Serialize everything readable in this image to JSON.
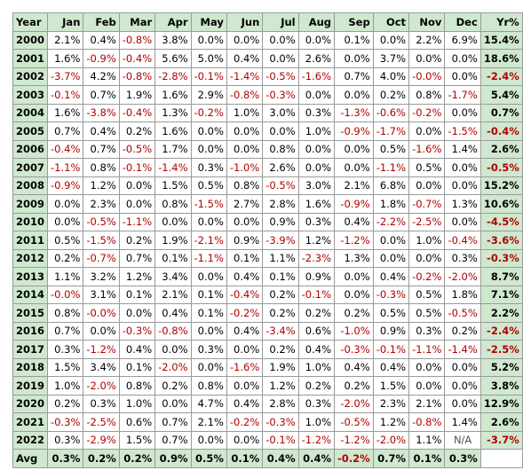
{
  "headers": [
    "Year",
    "Jan",
    "Feb",
    "Mar",
    "Apr",
    "May",
    "Jun",
    "Jul",
    "Aug",
    "Sep",
    "Oct",
    "Nov",
    "Dec",
    "Yr%"
  ],
  "rows": [
    {
      "year": "2000",
      "months": [
        "2.1%",
        "0.4%",
        "-0.8%",
        "3.8%",
        "0.0%",
        "0.0%",
        "0.0%",
        "0.0%",
        "0.1%",
        "0.0%",
        "2.2%",
        "6.9%"
      ],
      "ytd": "15.4%"
    },
    {
      "year": "2001",
      "months": [
        "1.6%",
        "-0.9%",
        "-0.4%",
        "5.6%",
        "5.0%",
        "0.4%",
        "0.0%",
        "2.6%",
        "0.0%",
        "3.7%",
        "0.0%",
        "0.0%"
      ],
      "ytd": "18.6%"
    },
    {
      "year": "2002",
      "months": [
        "-3.7%",
        "4.2%",
        "-0.8%",
        "-2.8%",
        "-0.1%",
        "-1.4%",
        "-0.5%",
        "-1.6%",
        "0.7%",
        "4.0%",
        "-0.0%",
        "0.0%"
      ],
      "ytd": "-2.4%"
    },
    {
      "year": "2003",
      "months": [
        "-0.1%",
        "0.7%",
        "1.9%",
        "1.6%",
        "2.9%",
        "-0.8%",
        "-0.3%",
        "0.0%",
        "0.0%",
        "0.2%",
        "0.8%",
        "-1.7%"
      ],
      "ytd": "5.4%"
    },
    {
      "year": "2004",
      "months": [
        "1.6%",
        "-3.8%",
        "-0.4%",
        "1.3%",
        "-0.2%",
        "1.0%",
        "3.0%",
        "0.3%",
        "-1.3%",
        "-0.6%",
        "-0.2%",
        "0.0%"
      ],
      "ytd": "0.7%"
    },
    {
      "year": "2005",
      "months": [
        "0.7%",
        "0.4%",
        "0.2%",
        "1.6%",
        "0.0%",
        "0.0%",
        "0.0%",
        "1.0%",
        "-0.9%",
        "-1.7%",
        "0.0%",
        "-1.5%"
      ],
      "ytd": "-0.4%"
    },
    {
      "year": "2006",
      "months": [
        "-0.4%",
        "0.7%",
        "-0.5%",
        "1.7%",
        "0.0%",
        "0.0%",
        "0.8%",
        "0.0%",
        "0.0%",
        "0.5%",
        "-1.6%",
        "1.4%"
      ],
      "ytd": "2.6%"
    },
    {
      "year": "2007",
      "months": [
        "-1.1%",
        "0.8%",
        "-0.1%",
        "-1.4%",
        "0.3%",
        "-1.0%",
        "2.6%",
        "0.0%",
        "0.0%",
        "-1.1%",
        "0.5%",
        "0.0%"
      ],
      "ytd": "-0.5%"
    },
    {
      "year": "2008",
      "months": [
        "-0.9%",
        "1.2%",
        "0.0%",
        "1.5%",
        "0.5%",
        "0.8%",
        "-0.5%",
        "3.0%",
        "2.1%",
        "6.8%",
        "0.0%",
        "0.0%"
      ],
      "ytd": "15.2%"
    },
    {
      "year": "2009",
      "months": [
        "0.0%",
        "2.3%",
        "0.0%",
        "0.8%",
        "-1.5%",
        "2.7%",
        "2.8%",
        "1.6%",
        "-0.9%",
        "1.8%",
        "-0.7%",
        "1.3%"
      ],
      "ytd": "10.6%"
    },
    {
      "year": "2010",
      "months": [
        "0.0%",
        "-0.5%",
        "-1.1%",
        "0.0%",
        "0.0%",
        "0.0%",
        "0.9%",
        "0.3%",
        "0.4%",
        "-2.2%",
        "-2.5%",
        "0.0%"
      ],
      "ytd": "-4.5%"
    },
    {
      "year": "2011",
      "months": [
        "0.5%",
        "-1.5%",
        "0.2%",
        "1.9%",
        "-2.1%",
        "0.9%",
        "-3.9%",
        "1.2%",
        "-1.2%",
        "0.0%",
        "1.0%",
        "-0.4%"
      ],
      "ytd": "-3.6%"
    },
    {
      "year": "2012",
      "months": [
        "0.2%",
        "-0.7%",
        "0.7%",
        "0.1%",
        "-1.1%",
        "0.1%",
        "1.1%",
        "-2.3%",
        "1.3%",
        "0.0%",
        "0.0%",
        "0.3%"
      ],
      "ytd": "-0.3%"
    },
    {
      "year": "2013",
      "months": [
        "1.1%",
        "3.2%",
        "1.2%",
        "3.4%",
        "0.0%",
        "0.4%",
        "0.1%",
        "0.9%",
        "0.0%",
        "0.4%",
        "-0.2%",
        "-2.0%"
      ],
      "ytd": "8.7%"
    },
    {
      "year": "2014",
      "months": [
        "-0.0%",
        "3.1%",
        "0.1%",
        "2.1%",
        "0.1%",
        "-0.4%",
        "0.2%",
        "-0.1%",
        "0.0%",
        "-0.3%",
        "0.5%",
        "1.8%"
      ],
      "ytd": "7.1%"
    },
    {
      "year": "2015",
      "months": [
        "0.8%",
        "-0.0%",
        "0.0%",
        "0.4%",
        "0.1%",
        "-0.2%",
        "0.2%",
        "0.2%",
        "0.2%",
        "0.5%",
        "0.5%",
        "-0.5%"
      ],
      "ytd": "2.2%"
    },
    {
      "year": "2016",
      "months": [
        "0.7%",
        "0.0%",
        "-0.3%",
        "-0.8%",
        "0.0%",
        "0.4%",
        "-3.4%",
        "0.6%",
        "-1.0%",
        "0.9%",
        "0.3%",
        "0.2%"
      ],
      "ytd": "-2.4%"
    },
    {
      "year": "2017",
      "months": [
        "0.3%",
        "-1.2%",
        "0.4%",
        "0.0%",
        "0.3%",
        "0.0%",
        "0.2%",
        "0.4%",
        "-0.3%",
        "-0.1%",
        "-1.1%",
        "-1.4%"
      ],
      "ytd": "-2.5%"
    },
    {
      "year": "2018",
      "months": [
        "1.5%",
        "3.4%",
        "0.1%",
        "-2.0%",
        "0.0%",
        "-1.6%",
        "1.9%",
        "1.0%",
        "0.4%",
        "0.4%",
        "0.0%",
        "0.0%"
      ],
      "ytd": "5.2%"
    },
    {
      "year": "2019",
      "months": [
        "1.0%",
        "-2.0%",
        "0.8%",
        "0.2%",
        "0.8%",
        "0.0%",
        "1.2%",
        "0.2%",
        "0.2%",
        "1.5%",
        "0.0%",
        "0.0%"
      ],
      "ytd": "3.8%"
    },
    {
      "year": "2020",
      "months": [
        "0.2%",
        "0.3%",
        "1.0%",
        "0.0%",
        "4.7%",
        "0.4%",
        "2.8%",
        "0.3%",
        "-2.0%",
        "2.3%",
        "2.1%",
        "0.0%"
      ],
      "ytd": "12.9%"
    },
    {
      "year": "2021",
      "months": [
        "-0.3%",
        "-2.5%",
        "0.6%",
        "0.7%",
        "2.1%",
        "-0.2%",
        "-0.3%",
        "1.0%",
        "-0.5%",
        "1.2%",
        "-0.8%",
        "1.4%"
      ],
      "ytd": "2.6%"
    },
    {
      "year": "2022",
      "months": [
        "0.3%",
        "-2.9%",
        "1.5%",
        "0.7%",
        "0.0%",
        "0.0%",
        "-0.1%",
        "-1.2%",
        "-1.2%",
        "-2.0%",
        "1.1%",
        "N/A"
      ],
      "ytd": "-3.7%"
    }
  ],
  "avg": {
    "label": "Avg",
    "months": [
      "0.3%",
      "0.2%",
      "0.2%",
      "0.9%",
      "0.5%",
      "0.1%",
      "0.4%",
      "0.4%",
      "-0.2%",
      "0.7%",
      "0.1%",
      "0.3%"
    ],
    "ytd": ""
  },
  "colors": {
    "header_bg": "#cfe8cf",
    "negative": "#b00000",
    "border": "#9a9a9a"
  }
}
